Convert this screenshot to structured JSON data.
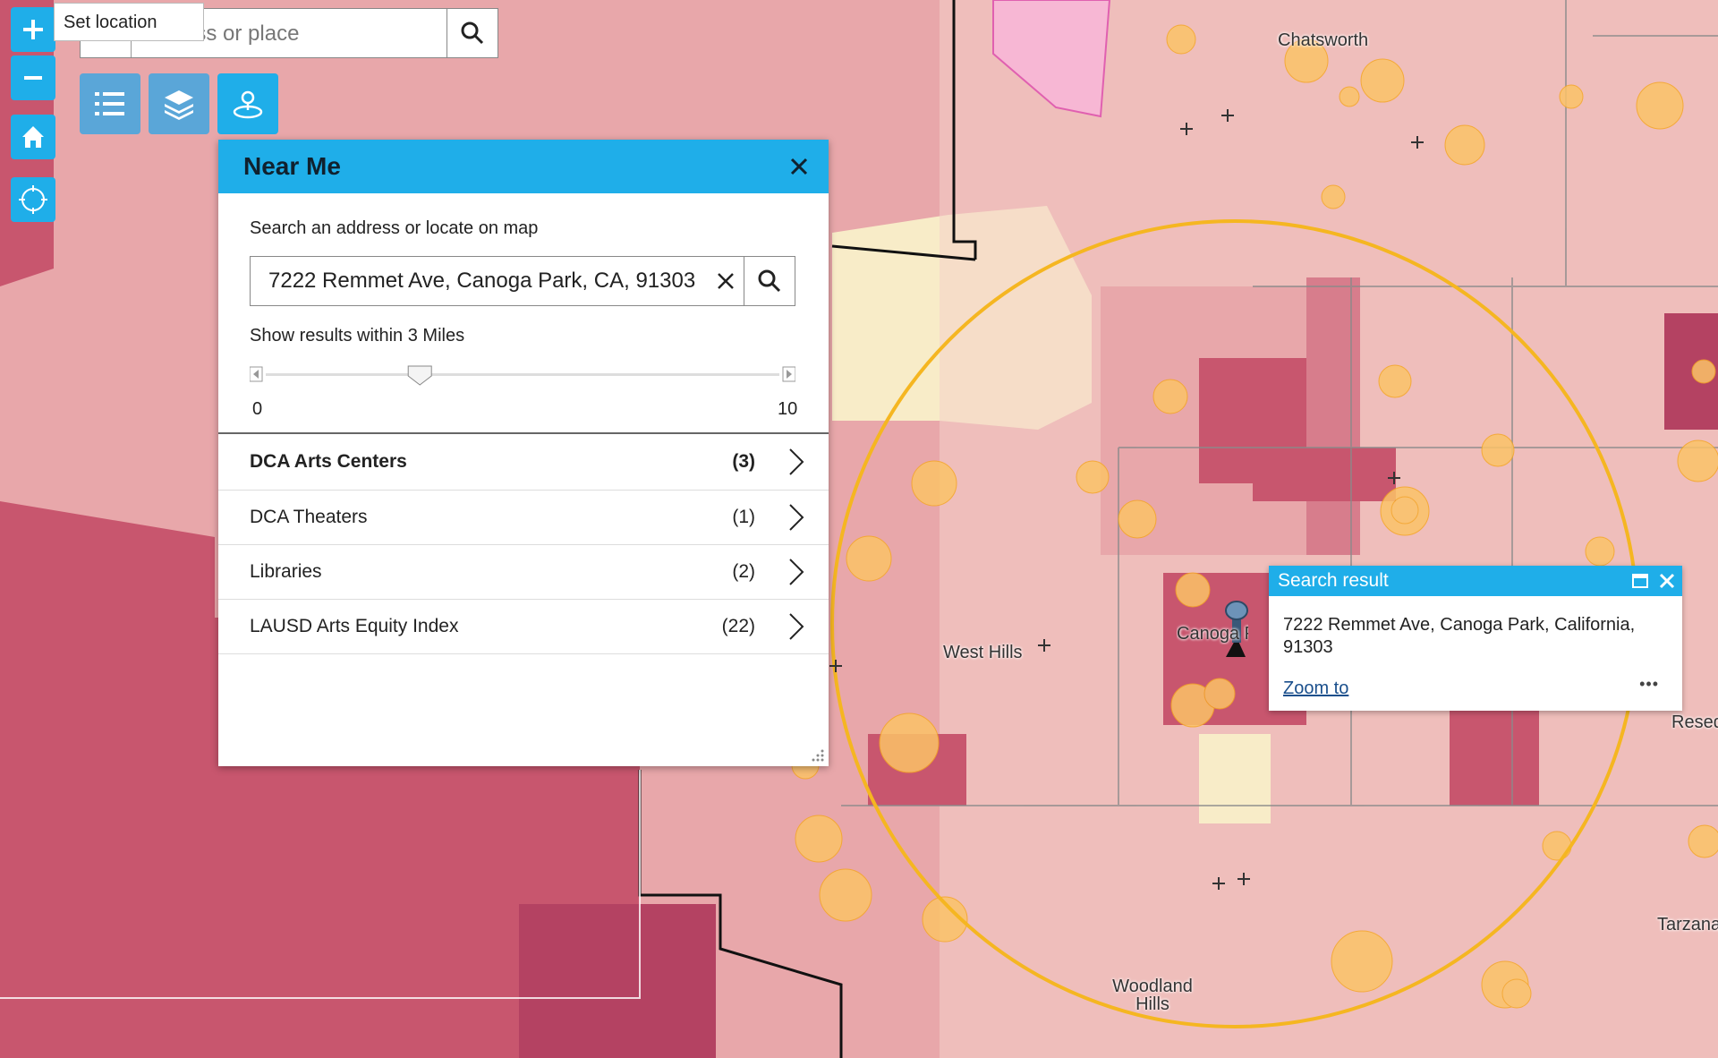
{
  "map": {
    "place_labels": [
      "Chatsworth",
      "West Hills",
      "Canoga Park",
      "Woodland Hills",
      "Tarzana",
      "Reseda"
    ],
    "colors": {
      "base": "#e8a7aa",
      "dark": "#c8566e",
      "darker": "#b44262",
      "light": "#f4d2c8",
      "lightest": "#f8e9d8",
      "buffer_ring": "#f5b621",
      "point": "#fbc368"
    }
  },
  "zoom_controls": {
    "zoom_in_icon": "plus-icon",
    "zoom_out_icon": "minus-icon",
    "home_icon": "home-icon",
    "locate_icon": "locate-icon"
  },
  "tooltip": {
    "text": "Set location"
  },
  "search": {
    "placeholder": "address or place",
    "icon": "search-icon"
  },
  "toolbar": {
    "list_icon": "list-icon",
    "layers_icon": "layers-icon",
    "near_me_icon": "near-me-icon"
  },
  "near_me": {
    "title": "Near Me",
    "search_label": "Search an address or locate on map",
    "address_value": "7222 Remmet Ave, Canoga Park, CA, 91303",
    "distance_label": "Show results within 3 Miles",
    "slider": {
      "min": "0",
      "max": "10",
      "value": 3
    },
    "results": [
      {
        "name": "DCA Arts Centers",
        "count": "(3)",
        "bold": true
      },
      {
        "name": "DCA Theaters",
        "count": "(1)",
        "bold": false
      },
      {
        "name": "Libraries",
        "count": "(2)",
        "bold": false
      },
      {
        "name": "LAUSD Arts Equity Index",
        "count": "(22)",
        "bold": false
      }
    ]
  },
  "popup": {
    "title": "Search result",
    "address": "7222 Remmet Ave, Canoga Park, California, 91303",
    "zoom_link": "Zoom to",
    "more": "•••"
  }
}
